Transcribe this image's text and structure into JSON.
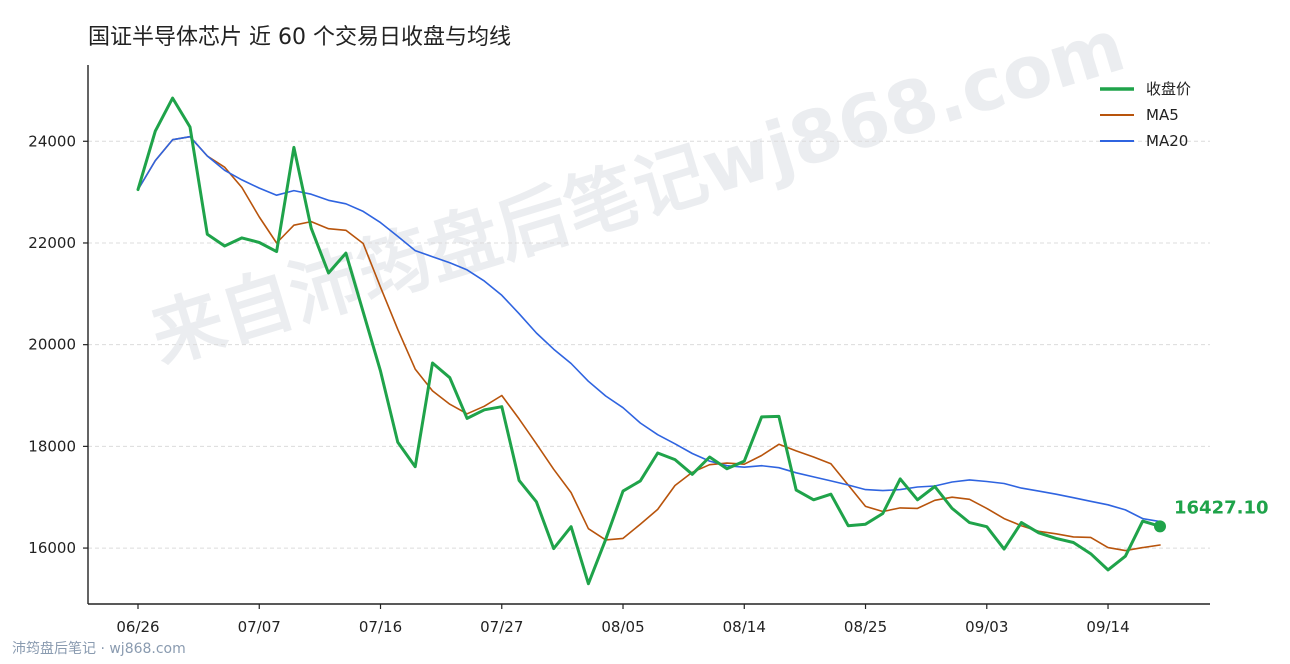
{
  "chart_data": {
    "type": "line",
    "title": "国证半导体芯片 近 60 个交易日收盘与均线",
    "xlabel": "",
    "ylabel": "",
    "ylim": [
      14900,
      25500
    ],
    "y_ticks": [
      16000,
      18000,
      20000,
      22000,
      24000
    ],
    "x_tick_labels": [
      "06/26",
      "07/07",
      "07/16",
      "07/27",
      "08/05",
      "08/14",
      "08/25",
      "09/03",
      "09/14"
    ],
    "x_tick_indices": [
      0,
      7,
      14,
      21,
      28,
      35,
      42,
      49,
      56
    ],
    "grid": "horizontal dashed",
    "legend_position": "top-right",
    "series": [
      {
        "name": "收盘价",
        "color": "#1fa34a",
        "line_width": 3,
        "values": [
          23050,
          24200,
          24850,
          24280,
          22170,
          21940,
          22100,
          22010,
          21830,
          23880,
          22290,
          21410,
          21800,
          20640,
          19480,
          18080,
          17600,
          19640,
          19350,
          18550,
          18720,
          18780,
          17330,
          16910,
          15990,
          16420,
          15300,
          16170,
          17120,
          17320,
          17870,
          17740,
          17450,
          17790,
          17560,
          17710,
          18580,
          18590,
          17140,
          16950,
          17060,
          16440,
          16470,
          16680,
          17360,
          16950,
          17210,
          16780,
          16500,
          16420,
          15980,
          16500,
          16300,
          16190,
          16110,
          15890,
          15570,
          15840,
          16530,
          16427.1
        ]
      },
      {
        "name": "MA5",
        "color": "#b8540c",
        "line_width": 1.6,
        "values": [
          23050,
          23620,
          24030,
          24090,
          23710,
          23490,
          23090,
          22510,
          22000,
          22350,
          22420,
          22280,
          22250,
          21990,
          21130,
          20300,
          19520,
          19090,
          18830,
          18640,
          18790,
          19000,
          18540,
          18050,
          17550,
          17090,
          16380,
          16160,
          16190,
          16470,
          16760,
          17230,
          17490,
          17640,
          17670,
          17650,
          17820,
          18040,
          17910,
          17790,
          17660,
          17240,
          16820,
          16720,
          16790,
          16780,
          16940,
          17000,
          16960,
          16780,
          16580,
          16440,
          16330,
          16280,
          16220,
          16210,
          16010,
          15950,
          16010,
          16060
        ]
      },
      {
        "name": "MA20",
        "color": "#2f64e0",
        "line_width": 1.6,
        "values": [
          23050,
          23620,
          24030,
          24090,
          23710,
          23430,
          23240,
          23080,
          22940,
          23030,
          22960,
          22840,
          22770,
          22620,
          22400,
          22130,
          21850,
          21730,
          21610,
          21470,
          21250,
          20970,
          20610,
          20230,
          19910,
          19630,
          19280,
          18990,
          18760,
          18460,
          18230,
          18050,
          17860,
          17710,
          17620,
          17590,
          17620,
          17580,
          17480,
          17400,
          17320,
          17240,
          17150,
          17130,
          17150,
          17200,
          17220,
          17300,
          17340,
          17310,
          17270,
          17180,
          17120,
          17060,
          16990,
          16920,
          16850,
          16750,
          16580,
          16520
        ]
      }
    ],
    "end_marker": {
      "series": "收盘价",
      "value": 16427.1,
      "label": "16427.10",
      "color": "#1fa34a"
    }
  },
  "watermark": "来自沛筠盘后笔记wj868.com",
  "footer": "沛筠盘后笔记 · wj868.com"
}
